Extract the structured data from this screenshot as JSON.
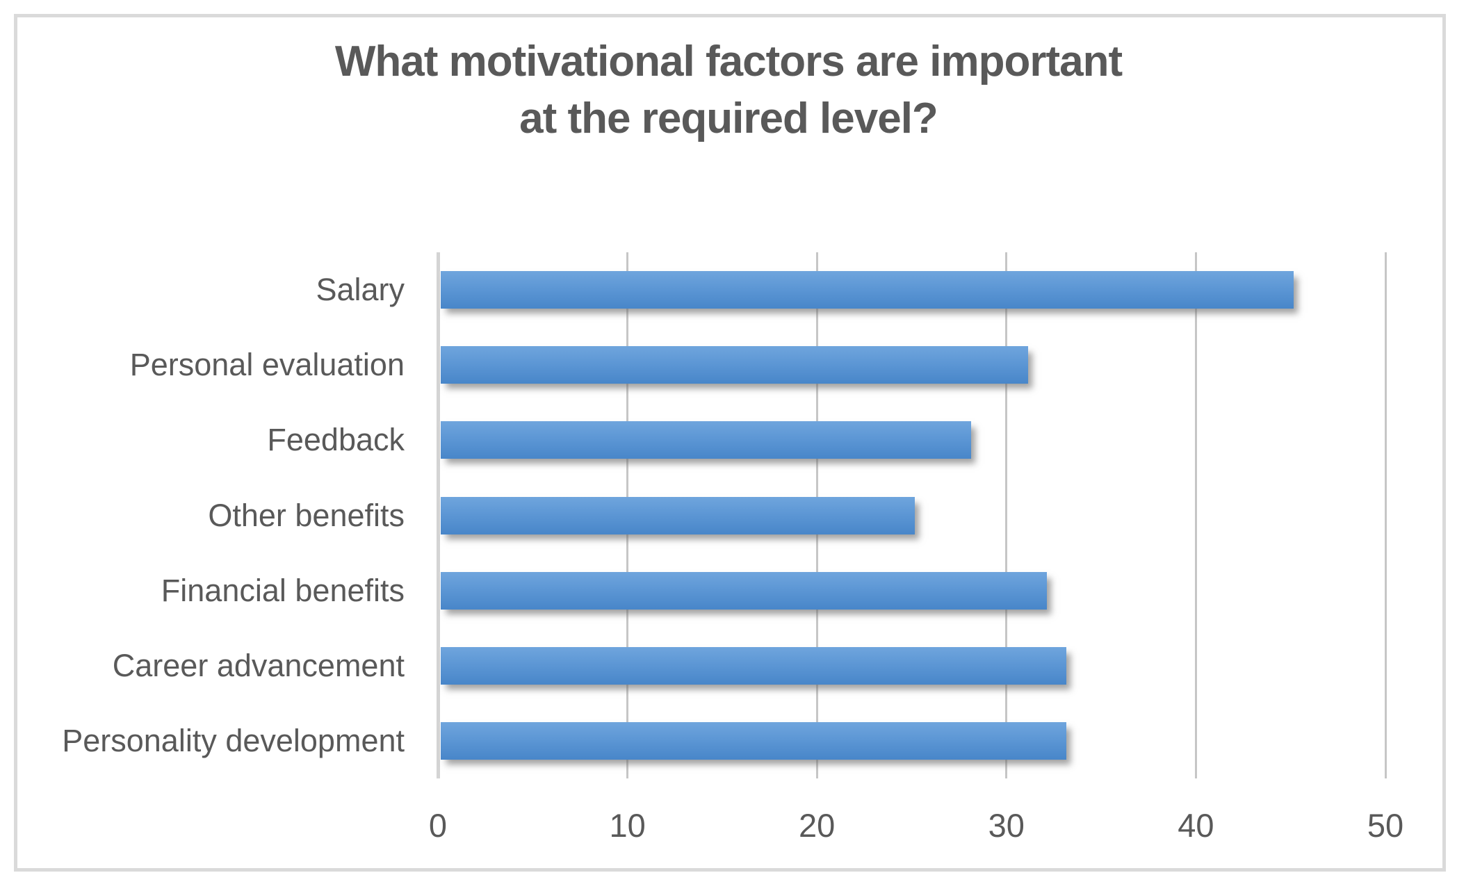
{
  "title": {
    "line1": "What motivational factors are important",
    "line2": "at the required level?"
  },
  "colors": {
    "title_text": "#595959",
    "axis_text": "#595959",
    "gridline": "#c6c6c6",
    "frame_border": "#dadada",
    "bar_gradient_top": "#6fa5dd",
    "bar_gradient_bottom": "#4886c9",
    "background": "#ffffff"
  },
  "chart_data": {
    "type": "bar",
    "orientation": "horizontal",
    "title": "What motivational factors are important at the required level?",
    "categories": [
      "Salary",
      "Personal evaluation",
      "Feedback",
      "Other benefits",
      "Financial benefits",
      "Career advancement",
      "Personality development"
    ],
    "values": [
      45,
      31,
      28,
      25,
      32,
      33,
      33
    ],
    "xlabel": "",
    "ylabel": "",
    "xlim": [
      0,
      50
    ],
    "xticks": [
      0,
      10,
      20,
      30,
      40,
      50
    ],
    "grid": true,
    "legend": false
  }
}
